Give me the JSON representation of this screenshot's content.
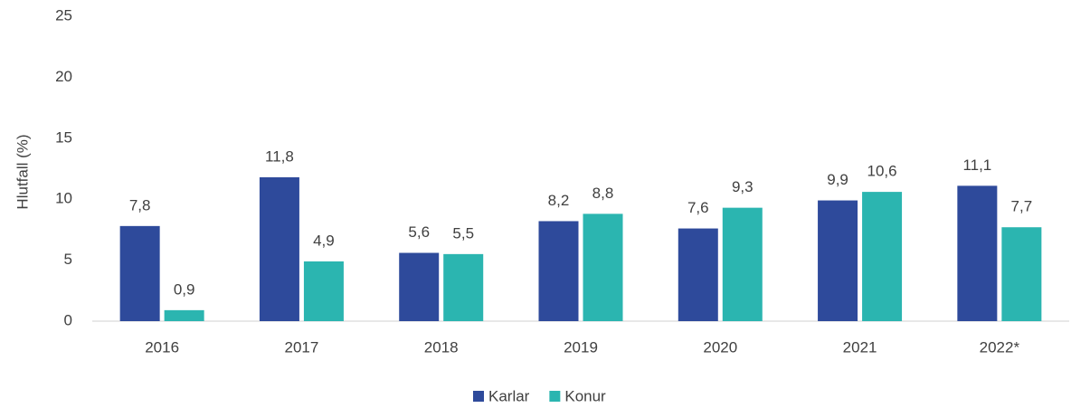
{
  "chart_data": {
    "type": "bar",
    "y_label": "Hlutfall (%)",
    "categories": [
      "2016",
      "2017",
      "2018",
      "2019",
      "2020",
      "2021",
      "2022*"
    ],
    "series": [
      {
        "name": "Karlar",
        "color": "#2e4a9b",
        "values": [
          7.8,
          11.8,
          5.6,
          8.2,
          7.6,
          9.9,
          11.1
        ],
        "value_labels": [
          "7,8",
          "11,8",
          "5,6",
          "8,2",
          "7,6",
          "9,9",
          "11,1"
        ]
      },
      {
        "name": "Konur",
        "color": "#2bb5b0",
        "values": [
          0.9,
          4.9,
          5.5,
          8.8,
          9.3,
          10.6,
          7.7
        ],
        "value_labels": [
          "0,9",
          "4,9",
          "5,5",
          "8,8",
          "9,3",
          "10,6",
          "7,7"
        ]
      }
    ],
    "ylim": [
      0,
      25
    ],
    "yticks": [
      0,
      5,
      10,
      15,
      20,
      25
    ],
    "grid": false,
    "legend": "bottom"
  }
}
